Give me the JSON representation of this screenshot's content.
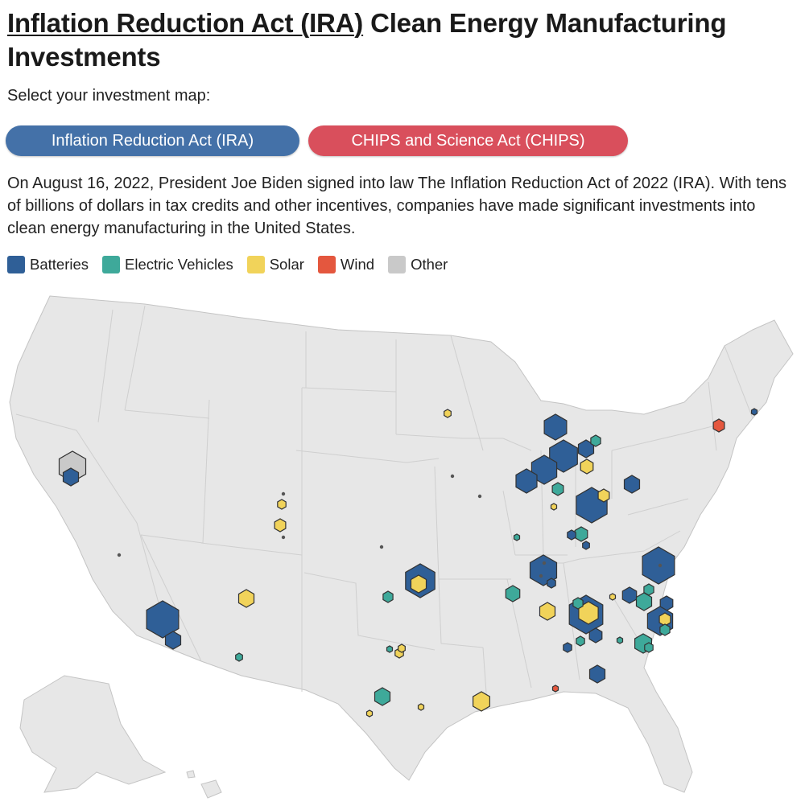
{
  "title": {
    "underlined": "Inflation Reduction Act (IRA)",
    "rest": " Clean Energy Manufacturing Investments"
  },
  "prompt": "Select your investment map:",
  "buttons": {
    "ira": "Inflation Reduction Act (IRA)",
    "chips": "CHIPS and Science Act (CHIPS)"
  },
  "description": "On August 16, 2022, President Joe Biden signed into law The Inflation Reduction Act of 2022 (IRA). With tens of billions of dollars in tax credits and other incentives, companies have made significant investments into clean energy manufacturing in the United States.",
  "legend": [
    {
      "label": "Batteries",
      "color": "#2f5f97"
    },
    {
      "label": "Electric Vehicles",
      "color": "#3ea99a"
    },
    {
      "label": "Solar",
      "color": "#f1d35a"
    },
    {
      "label": "Wind",
      "color": "#e4573e"
    },
    {
      "label": "Other",
      "color": "#c9c9c9"
    }
  ],
  "colors": {
    "B": "#2f5f97",
    "E": "#3ea99a",
    "S": "#f1d35a",
    "W": "#e4573e",
    "O": "#c9c9c9"
  },
  "chart_data": {
    "type": "map",
    "region": "United States",
    "series": [
      "Batteries",
      "Electric Vehicles",
      "Solar",
      "Wind",
      "Other"
    ]
  }
}
